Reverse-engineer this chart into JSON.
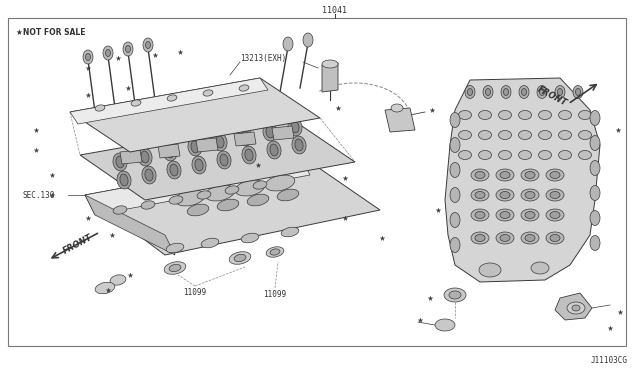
{
  "bg_color": "#ffffff",
  "border_color": "#777777",
  "line_color": "#444444",
  "text_color": "#333333",
  "label_11041": "11041",
  "label_nfs": "★NOT FOR SALE",
  "label_13213": "13213(EXH)",
  "label_sec130": "SEC.130",
  "label_11099a": "11099",
  "label_11099b": "11099",
  "label_j11103cg": "J11103CG",
  "label_front_left": "FRONT",
  "label_front_right": "FRONT",
  "draw_color": "#3a3a3a",
  "detail_color": "#666666",
  "light_fill": "#e0e0e0",
  "mid_fill": "#c8c8c8",
  "dark_fill": "#aaaaaa"
}
